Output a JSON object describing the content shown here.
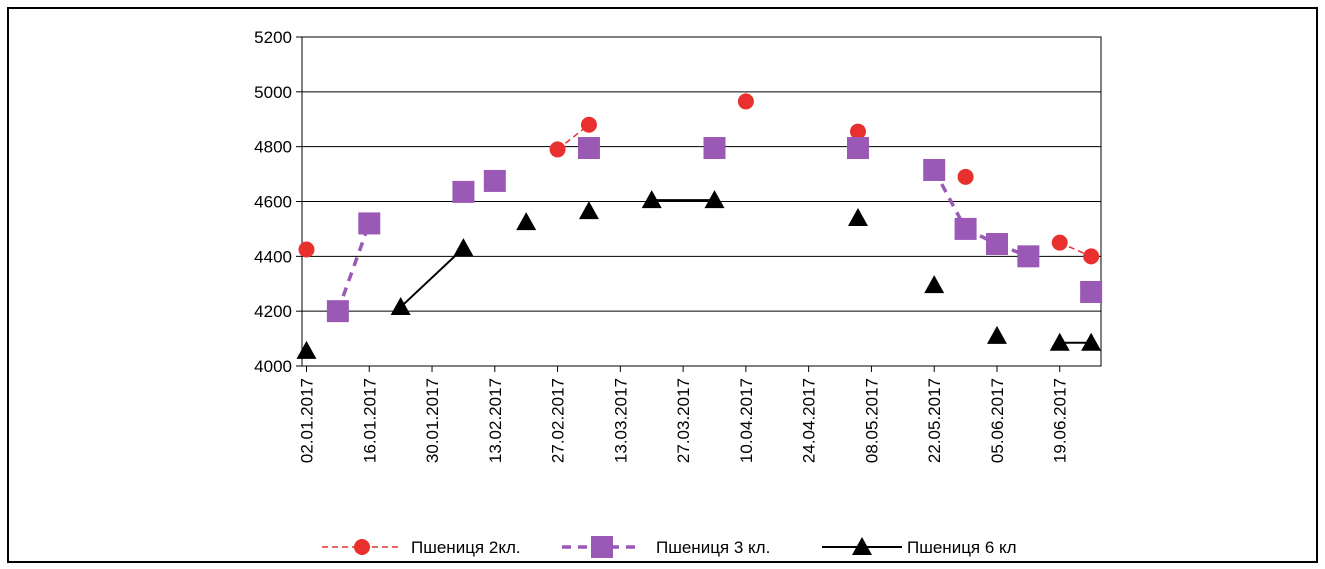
{
  "chart_data": {
    "type": "line",
    "ylim": [
      4000,
      5200
    ],
    "yticks": [
      4000,
      4200,
      4400,
      4600,
      4800,
      5000,
      5200
    ],
    "xticks": [
      "02.01.2017",
      "16.01.2017",
      "30.01.2017",
      "13.02.2017",
      "27.02.2017",
      "13.03.2017",
      "27.03.2017",
      "10.04.2017",
      "24.04.2017",
      "08.05.2017",
      "22.05.2017",
      "05.06.2017",
      "19.06.2017"
    ],
    "xlim": [
      "02.01.2017",
      "26.06.2017"
    ],
    "grid": "horizontal",
    "legend_position": "bottom",
    "series": [
      {
        "name": "Пшениця 2кл.",
        "color": "#e8302f",
        "marker": "circle",
        "line_style": "dashed",
        "points": [
          {
            "x": "02.01.2017",
            "y": 4425
          },
          {
            "x": "16.01.2017",
            "y": 4510
          },
          {
            "x": "27.02.2017",
            "y": 4790
          },
          {
            "x": "06.03.2017",
            "y": 4880
          },
          {
            "x": "10.04.2017",
            "y": 4965
          },
          {
            "x": "05.05.2017",
            "y": 4855
          },
          {
            "x": "29.05.2017",
            "y": 4690
          },
          {
            "x": "19.06.2017",
            "y": 4450
          },
          {
            "x": "26.06.2017",
            "y": 4400
          }
        ],
        "segments": [
          [
            2,
            3
          ],
          [
            7,
            8
          ]
        ]
      },
      {
        "name": "Пшениця 3 кл.",
        "color": "#9b59b6",
        "marker": "square",
        "line_style": "dashed-bold",
        "points": [
          {
            "x": "09.01.2017",
            "y": 4200
          },
          {
            "x": "16.01.2017",
            "y": 4520
          },
          {
            "x": "06.02.2017",
            "y": 4635
          },
          {
            "x": "13.02.2017",
            "y": 4675
          },
          {
            "x": "06.03.2017",
            "y": 4795
          },
          {
            "x": "03.04.2017",
            "y": 4795
          },
          {
            "x": "05.05.2017",
            "y": 4795
          },
          {
            "x": "22.05.2017",
            "y": 4715
          },
          {
            "x": "29.05.2017",
            "y": 4500
          },
          {
            "x": "05.06.2017",
            "y": 4445
          },
          {
            "x": "12.06.2017",
            "y": 4400
          },
          {
            "x": "26.06.2017",
            "y": 4270
          }
        ],
        "segments": [
          [
            0,
            1
          ],
          [
            7,
            8
          ],
          [
            8,
            9
          ],
          [
            9,
            10
          ]
        ]
      },
      {
        "name": "Пшениця 6 кл",
        "color": "#000000",
        "marker": "triangle",
        "line_style": "solid",
        "points": [
          {
            "x": "02.01.2017",
            "y": 4055
          },
          {
            "x": "23.01.2017",
            "y": 4215
          },
          {
            "x": "06.02.2017",
            "y": 4430
          },
          {
            "x": "20.02.2017",
            "y": 4525
          },
          {
            "x": "06.03.2017",
            "y": 4565
          },
          {
            "x": "20.03.2017",
            "y": 4605
          },
          {
            "x": "03.04.2017",
            "y": 4605
          },
          {
            "x": "05.05.2017",
            "y": 4540
          },
          {
            "x": "22.05.2017",
            "y": 4295
          },
          {
            "x": "05.06.2017",
            "y": 4110
          },
          {
            "x": "19.06.2017",
            "y": 4085
          },
          {
            "x": "26.06.2017",
            "y": 4085
          }
        ],
        "segments": [
          [
            1,
            2
          ],
          [
            5,
            6
          ],
          [
            10,
            11
          ]
        ]
      }
    ]
  }
}
